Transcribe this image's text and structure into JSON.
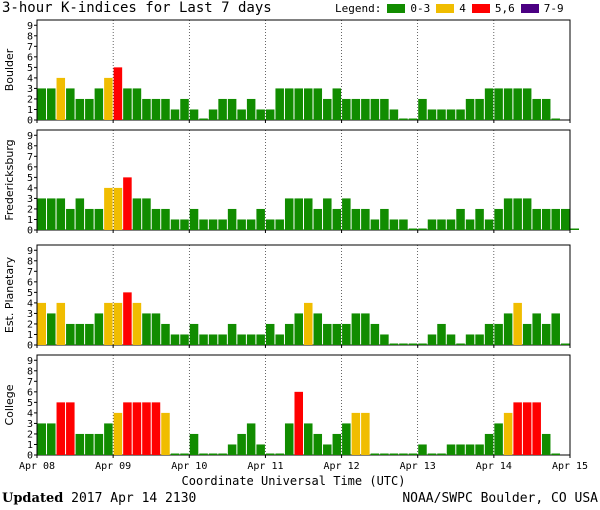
{
  "title": "3-hour K-indices for Last 7 days",
  "legend": {
    "label": "Legend:",
    "items": [
      {
        "label": "0-3",
        "color": "#118c00"
      },
      {
        "label": "4",
        "color": "#f0bd00"
      },
      {
        "label": "5,6",
        "color": "#ff0000"
      },
      {
        "label": "7-9",
        "color": "#4b0082"
      }
    ]
  },
  "footer": {
    "updated_label": "Updated",
    "updated_value": "2017 Apr 14 2130",
    "credit": "NOAA/SWPC Boulder, CO USA"
  },
  "chart_data": {
    "type": "bar",
    "xlabel": "Coordinate Universal Time (UTC)",
    "x_ticks": [
      "Apr 08",
      "Apr 09",
      "Apr 10",
      "Apr 11",
      "Apr 12",
      "Apr 13",
      "Apr 14",
      "Apr 15"
    ],
    "ylim": [
      0,
      9
    ],
    "y_ticks": [
      "0",
      "1",
      "2",
      "3",
      "4",
      "5",
      "6",
      "7",
      "8",
      "9"
    ],
    "bins_per_day": 8,
    "panels": [
      {
        "ylabel": "Boulder",
        "values": [
          3,
          3,
          4,
          3,
          2,
          2,
          3,
          4,
          5,
          3,
          3,
          2,
          2,
          2,
          1,
          2,
          1,
          0,
          1,
          2,
          2,
          1,
          2,
          1,
          1,
          3,
          3,
          3,
          3,
          3,
          2,
          3,
          2,
          2,
          2,
          2,
          2,
          1,
          0,
          0,
          2,
          1,
          1,
          1,
          1,
          2,
          2,
          3,
          3,
          3,
          3,
          3,
          2,
          2,
          0
        ]
      },
      {
        "ylabel": "Fredericksburg",
        "values": [
          3,
          3,
          3,
          2,
          3,
          2,
          2,
          4,
          4,
          5,
          3,
          3,
          2,
          2,
          1,
          1,
          2,
          1,
          1,
          1,
          2,
          1,
          1,
          2,
          1,
          1,
          3,
          3,
          3,
          2,
          3,
          2,
          3,
          2,
          2,
          1,
          2,
          1,
          1,
          0,
          0,
          1,
          1,
          1,
          2,
          1,
          2,
          1,
          2,
          3,
          3,
          3,
          2,
          2,
          2,
          2,
          0
        ]
      },
      {
        "ylabel": "Est. Planetary",
        "values": [
          4,
          3,
          4,
          2,
          2,
          2,
          3,
          4,
          4,
          5,
          4,
          3,
          3,
          2,
          1,
          1,
          2,
          1,
          1,
          1,
          2,
          1,
          1,
          1,
          2,
          1,
          2,
          3,
          4,
          3,
          2,
          2,
          2,
          3,
          3,
          2,
          1,
          0,
          0,
          0,
          0,
          1,
          2,
          1,
          0,
          1,
          1,
          2,
          2,
          3,
          4,
          2,
          3,
          2,
          3,
          0
        ]
      },
      {
        "ylabel": "College",
        "values": [
          3,
          3,
          5,
          5,
          2,
          2,
          2,
          3,
          4,
          5,
          5,
          5,
          5,
          4,
          0,
          0,
          2,
          0,
          0,
          0,
          1,
          2,
          3,
          1,
          0,
          0,
          3,
          6,
          3,
          2,
          1,
          2,
          3,
          4,
          4,
          0,
          0,
          0,
          0,
          0,
          1,
          0,
          0,
          1,
          1,
          1,
          1,
          2,
          3,
          4,
          5,
          5,
          5,
          2,
          0
        ]
      }
    ]
  }
}
